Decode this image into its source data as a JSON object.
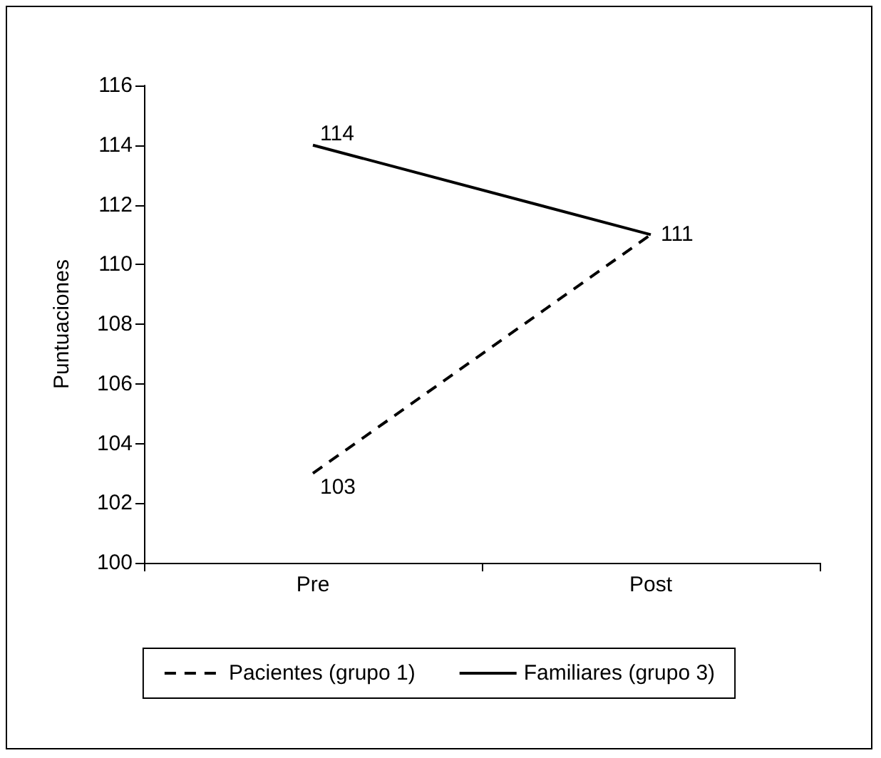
{
  "chart_data": {
    "type": "line",
    "ylabel": "Puntuaciones",
    "categories": [
      "Pre",
      "Post"
    ],
    "series": [
      {
        "name": "Pacientes (grupo 1)",
        "color": "#000000",
        "values": [
          103,
          111
        ],
        "line_style": "dashed",
        "value_labels": [
          "103",
          null
        ]
      },
      {
        "name": "Familiares (grupo 3)",
        "color": "#000000",
        "values": [
          114,
          111
        ],
        "line_style": "solid",
        "value_labels": [
          "114",
          "111"
        ]
      }
    ],
    "ylim": [
      100,
      116
    ],
    "yticks": [
      100,
      102,
      104,
      106,
      108,
      110,
      112,
      114,
      116
    ],
    "grid": false,
    "legend": "bottom",
    "marker": "none"
  }
}
